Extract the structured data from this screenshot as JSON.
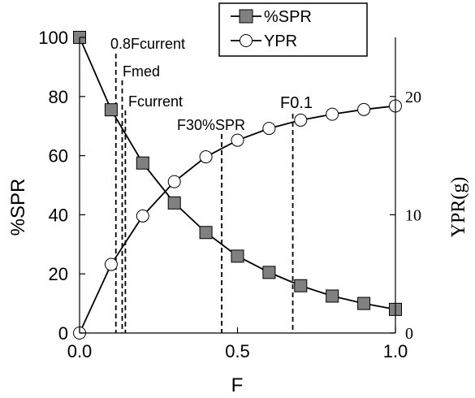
{
  "chart_data": {
    "type": "line",
    "xlabel": "F",
    "ylabel_left": "%SPR",
    "ylabel_right": "YPR(g)",
    "xlim": [
      0,
      1.0
    ],
    "ylim_left": [
      0,
      100
    ],
    "ylim_right": [
      0,
      25
    ],
    "xticks": [
      "0.0",
      "0.5",
      "1.0"
    ],
    "yticks_left": [
      "0",
      "20",
      "40",
      "60",
      "80",
      "100"
    ],
    "yticks_right": [
      "0",
      "10",
      "20"
    ],
    "grid": false,
    "legend_position": "top-right",
    "series": [
      {
        "name": "%SPR",
        "axis": "left",
        "marker": "square",
        "color": "#808080",
        "x": [
          0.0,
          0.1,
          0.2,
          0.3,
          0.4,
          0.5,
          0.6,
          0.7,
          0.8,
          0.9,
          1.0
        ],
        "y": [
          100,
          75.5,
          57.5,
          44,
          34,
          26,
          20.5,
          16,
          12.5,
          10,
          8
        ]
      },
      {
        "name": "YPR",
        "axis": "right",
        "marker": "circle",
        "color": "#ffffff",
        "x": [
          0.0,
          0.1,
          0.2,
          0.3,
          0.4,
          0.5,
          0.6,
          0.7,
          0.8,
          0.9,
          1.0
        ],
        "y": [
          0,
          5.8,
          9.9,
          12.8,
          14.9,
          16.3,
          17.3,
          18.0,
          18.5,
          18.9,
          19.2
        ]
      }
    ],
    "reference_lines": [
      {
        "label": "0.8Fcurrent",
        "x": 0.115
      },
      {
        "label": "Fmed",
        "x": 0.135
      },
      {
        "label": "Fcurrent",
        "x": 0.145
      },
      {
        "label": "F30%SPR",
        "x": 0.45
      },
      {
        "label": "F0.1",
        "x": 0.675
      }
    ]
  }
}
